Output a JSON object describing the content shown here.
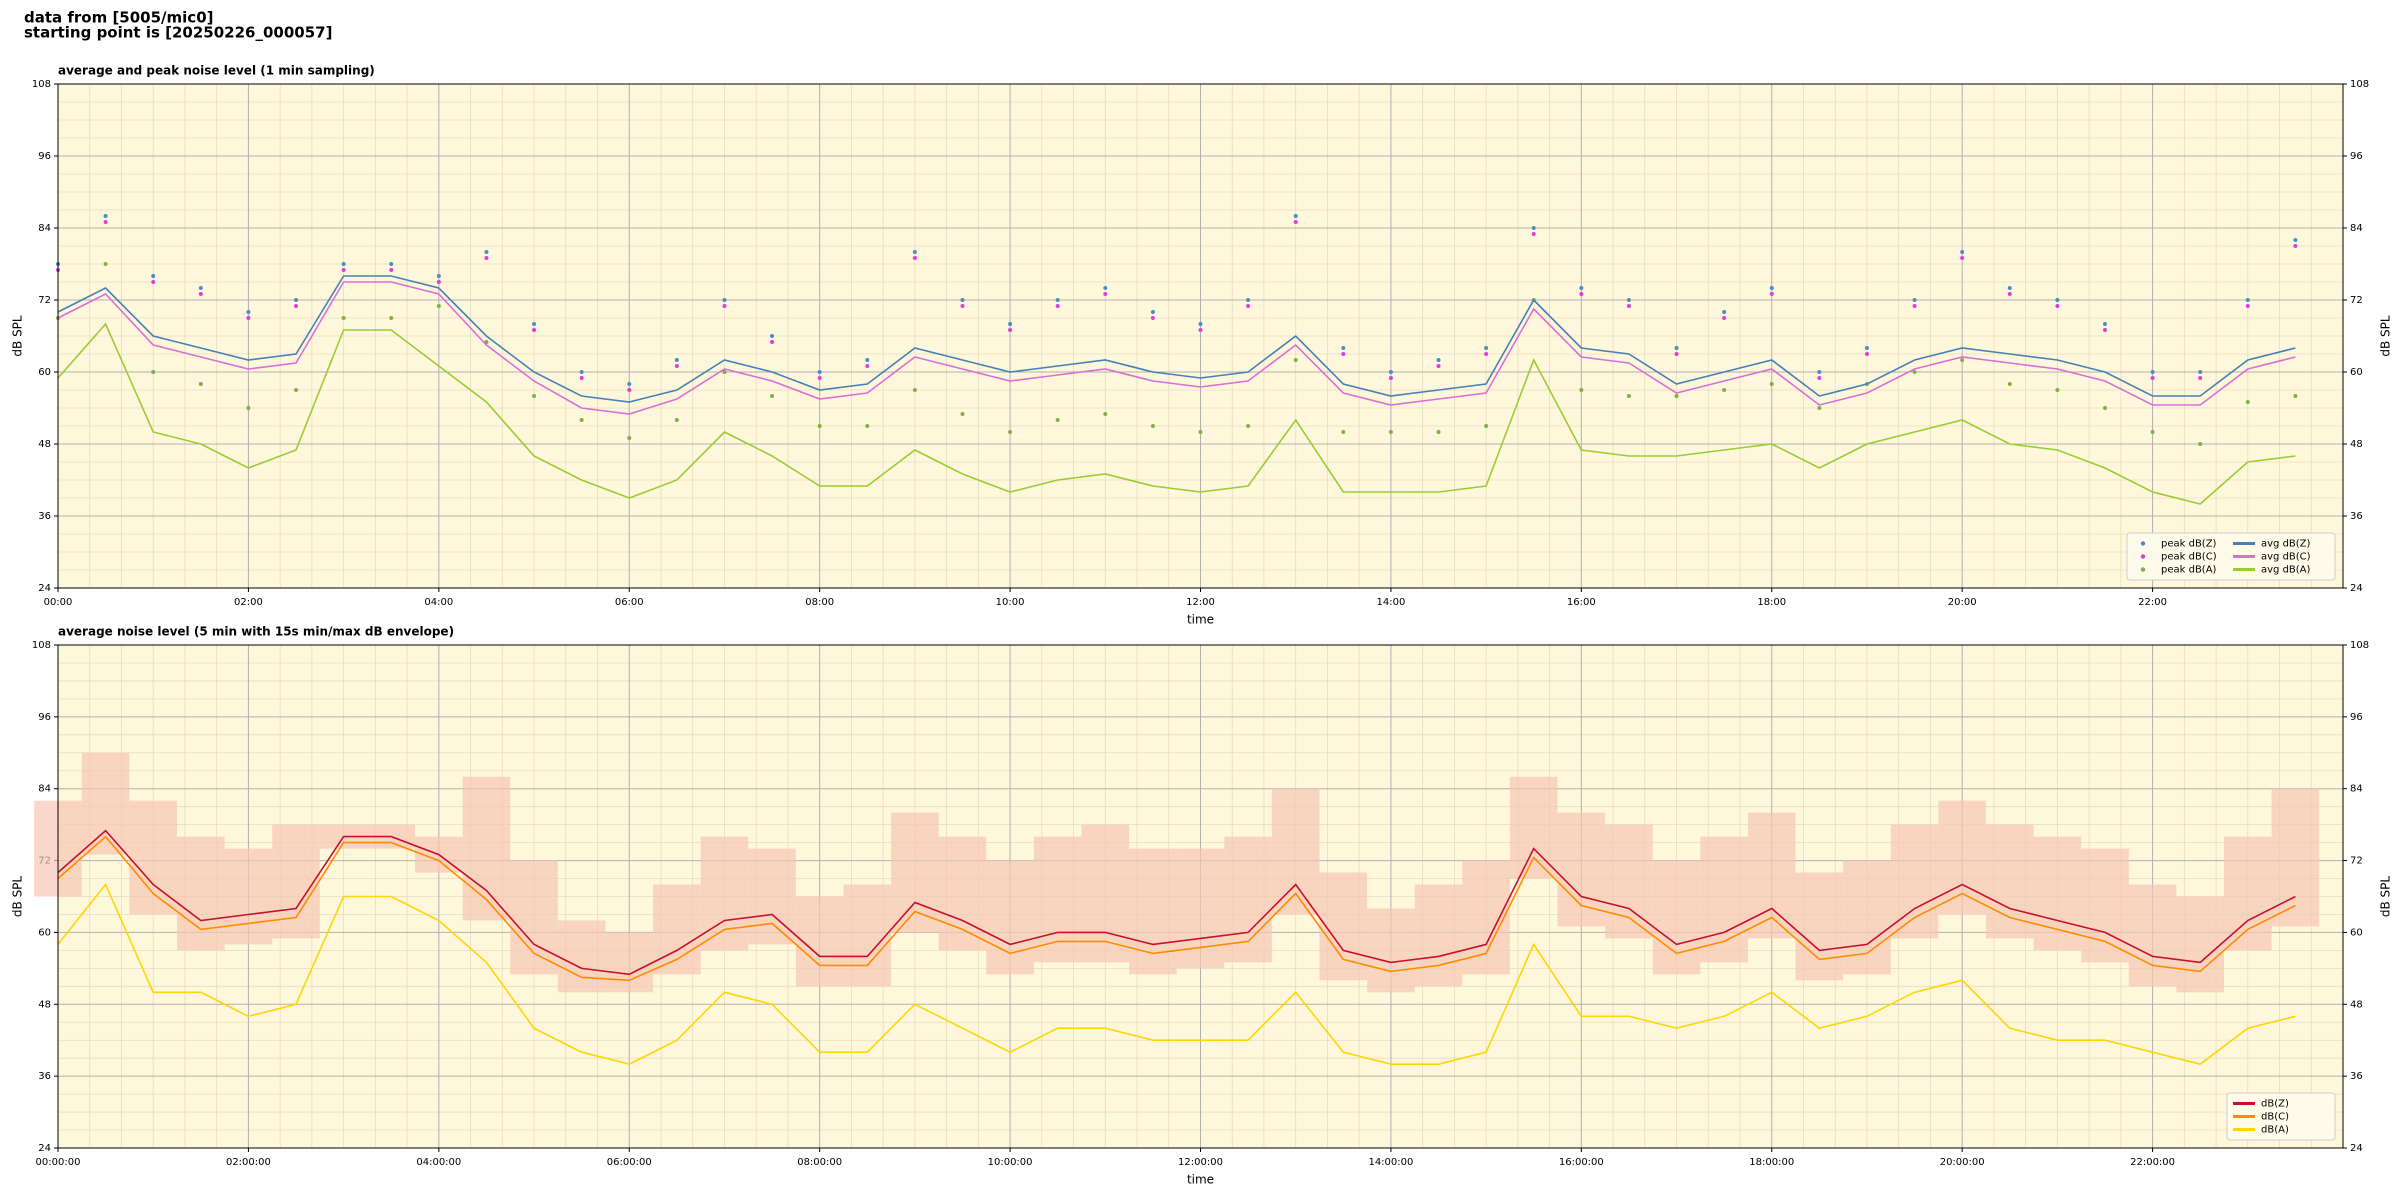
{
  "header": [
    "data from [5005/mic0]",
    "starting point is [20250226_000057]"
  ],
  "chart_data": [
    {
      "type": "line",
      "title": "average and peak noise level (1 min sampling)",
      "xlabel": "time",
      "ylabel": "dB SPL",
      "background": "#fff7dc",
      "grid": true,
      "minor_grid": true,
      "legend": "lower right",
      "legend_columns": 2,
      "xlim": [
        "00:00",
        "24:00"
      ],
      "xticks": [
        "00:00",
        "02:00",
        "04:00",
        "06:00",
        "08:00",
        "10:00",
        "12:00",
        "14:00",
        "16:00",
        "18:00",
        "20:00",
        "22:00"
      ],
      "ylim": [
        24,
        108
      ],
      "yticks": [
        24,
        36,
        48,
        60,
        72,
        84,
        96,
        108
      ],
      "x": [
        "00:00",
        "00:30",
        "01:00",
        "01:30",
        "02:00",
        "02:30",
        "03:00",
        "03:30",
        "04:00",
        "04:30",
        "05:00",
        "05:30",
        "06:00",
        "06:30",
        "07:00",
        "07:30",
        "08:00",
        "08:30",
        "09:00",
        "09:30",
        "10:00",
        "10:30",
        "11:00",
        "11:30",
        "12:00",
        "12:30",
        "13:00",
        "13:30",
        "14:00",
        "14:30",
        "15:00",
        "15:30",
        "16:00",
        "16:30",
        "17:00",
        "17:30",
        "18:00",
        "18:30",
        "19:00",
        "19:30",
        "20:00",
        "20:30",
        "21:00",
        "21:30",
        "22:00",
        "22:30",
        "23:00",
        "23:30"
      ],
      "series": [
        {
          "name": "peak dB(Z)",
          "type": "scatter",
          "color": "#4a8fc4",
          "values": [
            78,
            86,
            76,
            74,
            70,
            72,
            78,
            78,
            76,
            80,
            68,
            60,
            58,
            62,
            72,
            66,
            60,
            62,
            80,
            72,
            68,
            72,
            74,
            70,
            68,
            72,
            86,
            64,
            60,
            62,
            64,
            84,
            74,
            72,
            64,
            70,
            74,
            60,
            64,
            72,
            80,
            74,
            72,
            68,
            60,
            60,
            72,
            82
          ]
        },
        {
          "name": "peak dB(C)",
          "type": "scatter",
          "color": "#e03ce0",
          "values": [
            77,
            85,
            75,
            73,
            69,
            71,
            77,
            77,
            75,
            79,
            67,
            59,
            57,
            61,
            71,
            65,
            59,
            61,
            79,
            71,
            67,
            71,
            73,
            69,
            67,
            71,
            85,
            63,
            59,
            61,
            63,
            83,
            73,
            71,
            63,
            69,
            73,
            59,
            63,
            71,
            79,
            73,
            71,
            67,
            59,
            59,
            71,
            81
          ]
        },
        {
          "name": "peak dB(A)",
          "type": "scatter",
          "color": "#7cb342",
          "values": [
            69,
            78,
            60,
            58,
            54,
            57,
            69,
            69,
            71,
            65,
            56,
            52,
            49,
            52,
            60,
            56,
            51,
            51,
            57,
            53,
            50,
            52,
            53,
            51,
            50,
            51,
            62,
            50,
            50,
            50,
            51,
            72,
            57,
            56,
            56,
            57,
            58,
            54,
            58,
            60,
            62,
            58,
            57,
            54,
            50,
            48,
            55,
            56
          ]
        },
        {
          "name": "avg dB(Z)",
          "type": "line",
          "color": "#4682b4",
          "values": [
            70,
            74,
            66,
            64,
            62,
            63,
            76,
            76,
            74,
            66,
            60,
            56,
            55,
            57,
            62,
            60,
            57,
            58,
            64,
            62,
            60,
            61,
            62,
            60,
            59,
            60,
            66,
            58,
            56,
            57,
            58,
            72,
            64,
            63,
            58,
            60,
            62,
            56,
            58,
            62,
            64,
            63,
            62,
            60,
            56,
            56,
            62,
            64
          ]
        },
        {
          "name": "avg dB(C)",
          "type": "line",
          "color": "#da70d6",
          "values": [
            69,
            73,
            64.5,
            62.5,
            60.5,
            61.5,
            75,
            75,
            73,
            64.5,
            58.5,
            54,
            53,
            55.5,
            60.5,
            58.5,
            55.5,
            56.5,
            62.5,
            60.5,
            58.5,
            59.5,
            60.5,
            58.5,
            57.5,
            58.5,
            64.5,
            56.5,
            54.5,
            55.5,
            56.5,
            70.5,
            62.5,
            61.5,
            56.5,
            58.5,
            60.5,
            54.5,
            56.5,
            60.5,
            62.5,
            61.5,
            60.5,
            58.5,
            54.5,
            54.5,
            60.5,
            62.5
          ]
        },
        {
          "name": "avg dB(A)",
          "type": "line",
          "color": "#9acd32",
          "values": [
            59,
            68,
            50,
            48,
            44,
            47,
            67,
            67,
            61,
            55,
            46,
            42,
            39,
            42,
            50,
            46,
            41,
            41,
            47,
            43,
            40,
            42,
            43,
            41,
            40,
            41,
            52,
            40,
            40,
            40,
            41,
            62,
            47,
            46,
            46,
            47,
            48,
            44,
            48,
            50,
            52,
            48,
            47,
            44,
            40,
            38,
            45,
            46
          ]
        }
      ]
    },
    {
      "type": "line",
      "title": "average noise level (5 min with 15s min/max dB envelope)",
      "xlabel": "time",
      "ylabel": "dB SPL",
      "background": "#fff7dc",
      "grid": true,
      "minor_grid": true,
      "legend": "lower right",
      "legend_columns": 1,
      "xlim": [
        "00:00:00",
        "24:00:00"
      ],
      "xticks": [
        "00:00:00",
        "02:00:00",
        "04:00:00",
        "06:00:00",
        "08:00:00",
        "10:00:00",
        "12:00:00",
        "14:00:00",
        "16:00:00",
        "18:00:00",
        "20:00:00",
        "22:00:00"
      ],
      "ylim": [
        24,
        108
      ],
      "yticks": [
        24,
        36,
        48,
        60,
        72,
        84,
        96,
        108
      ],
      "x": [
        "00:00:00",
        "00:30:00",
        "01:00:00",
        "01:30:00",
        "02:00:00",
        "02:30:00",
        "03:00:00",
        "03:30:00",
        "04:00:00",
        "04:30:00",
        "05:00:00",
        "05:30:00",
        "06:00:00",
        "06:30:00",
        "07:00:00",
        "07:30:00",
        "08:00:00",
        "08:30:00",
        "09:00:00",
        "09:30:00",
        "10:00:00",
        "10:30:00",
        "11:00:00",
        "11:30:00",
        "12:00:00",
        "12:30:00",
        "13:00:00",
        "13:30:00",
        "14:00:00",
        "14:30:00",
        "15:00:00",
        "15:30:00",
        "16:00:00",
        "16:30:00",
        "17:00:00",
        "17:30:00",
        "18:00:00",
        "18:30:00",
        "19:00:00",
        "19:30:00",
        "20:00:00",
        "20:30:00",
        "21:00:00",
        "21:30:00",
        "22:00:00",
        "22:30:00",
        "23:00:00",
        "23:30:00"
      ],
      "envelope": {
        "color": "#f7c6b4",
        "min": [
          66,
          73,
          63,
          57,
          58,
          59,
          74,
          74,
          70,
          62,
          53,
          50,
          50,
          53,
          57,
          58,
          51,
          51,
          60,
          57,
          53,
          55,
          55,
          53,
          54,
          55,
          63,
          52,
          50,
          51,
          53,
          69,
          61,
          59,
          53,
          55,
          59,
          52,
          53,
          59,
          63,
          59,
          57,
          55,
          51,
          50,
          57,
          61
        ],
        "max": [
          82,
          90,
          82,
          76,
          74,
          78,
          78,
          78,
          76,
          86,
          72,
          62,
          60,
          68,
          76,
          74,
          66,
          68,
          80,
          76,
          72,
          76,
          78,
          74,
          74,
          76,
          84,
          70,
          64,
          68,
          72,
          86,
          80,
          78,
          72,
          76,
          80,
          70,
          72,
          78,
          82,
          78,
          76,
          74,
          68,
          66,
          76,
          84
        ]
      },
      "series": [
        {
          "name": "dB(Z)",
          "type": "line",
          "color": "#c8102e",
          "values": [
            70,
            77,
            68,
            62,
            63,
            64,
            76,
            76,
            73,
            67,
            58,
            54,
            53,
            57,
            62,
            63,
            56,
            56,
            65,
            62,
            58,
            60,
            60,
            58,
            59,
            60,
            68,
            57,
            55,
            56,
            58,
            74,
            66,
            64,
            58,
            60,
            64,
            57,
            58,
            64,
            68,
            64,
            62,
            60,
            56,
            55,
            62,
            66
          ]
        },
        {
          "name": "dB(C)",
          "type": "line",
          "color": "#ff8c00",
          "values": [
            69,
            76,
            66.5,
            60.5,
            61.5,
            62.5,
            75,
            75,
            72,
            65.5,
            56.5,
            52.5,
            52,
            55.5,
            60.5,
            61.5,
            54.5,
            54.5,
            63.5,
            60.5,
            56.5,
            58.5,
            58.5,
            56.5,
            57.5,
            58.5,
            66.5,
            55.5,
            53.5,
            54.5,
            56.5,
            72.5,
            64.5,
            62.5,
            56.5,
            58.5,
            62.5,
            55.5,
            56.5,
            62.5,
            66.5,
            62.5,
            60.5,
            58.5,
            54.5,
            53.5,
            60.5,
            64.5
          ]
        },
        {
          "name": "dB(A)",
          "type": "line",
          "color": "#ffd700",
          "values": [
            58,
            68,
            50,
            50,
            46,
            48,
            66,
            66,
            62,
            55,
            44,
            40,
            38,
            42,
            50,
            48,
            40,
            40,
            48,
            44,
            40,
            44,
            44,
            42,
            42,
            42,
            50,
            40,
            38,
            38,
            40,
            58,
            46,
            46,
            44,
            46,
            50,
            44,
            46,
            50,
            52,
            44,
            42,
            42,
            40,
            38,
            44,
            46
          ]
        }
      ]
    }
  ]
}
